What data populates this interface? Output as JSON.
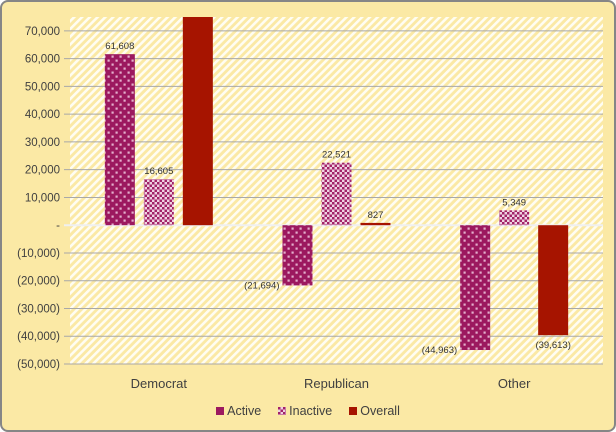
{
  "window": {
    "background": "#FBE9A5",
    "border_color": "#868686"
  },
  "chart_data": {
    "type": "bar",
    "title": "",
    "xlabel": "",
    "ylabel": "",
    "categories": [
      "Democrat",
      "Republican",
      "Other"
    ],
    "series": [
      {
        "name": "Active",
        "fill_style": "dotted",
        "color": "#9C195F",
        "dot_color": "#E3AFCC",
        "values": [
          61608,
          -21694,
          -44963
        ],
        "labels": [
          "61,608",
          "(21,694)",
          "(44,963)"
        ],
        "label_placements": [
          "above",
          "left",
          "left"
        ]
      },
      {
        "name": "Inactive",
        "fill_style": "checker",
        "color": "#A22368",
        "light_color": "#EFD2E2",
        "values": [
          16605,
          22521,
          5349
        ],
        "labels": [
          "16,605",
          "22,521",
          "5,349"
        ],
        "label_placements": [
          "above",
          "above",
          "above"
        ]
      },
      {
        "name": "Overall",
        "fill_style": "solid",
        "color": "#A61400",
        "values": [
          78213,
          827,
          -39613
        ],
        "labels": [
          "",
          "827",
          "(39,613)"
        ],
        "label_placements": [
          "none",
          "above",
          "below"
        ]
      }
    ],
    "y_axis": {
      "min": -50000,
      "max": 75000,
      "tick_step": 10000,
      "ticks": [
        {
          "v": 70000,
          "label": "70,000"
        },
        {
          "v": 60000,
          "label": "60,000"
        },
        {
          "v": 50000,
          "label": "50,000"
        },
        {
          "v": 40000,
          "label": "40,000"
        },
        {
          "v": 30000,
          "label": "30,000"
        },
        {
          "v": 20000,
          "label": "20,000"
        },
        {
          "v": 10000,
          "label": "10,000"
        },
        {
          "v": 0,
          "label": "-"
        },
        {
          "v": -10000,
          "label": "(10,000)"
        },
        {
          "v": -20000,
          "label": "(20,000)"
        },
        {
          "v": -30000,
          "label": "(30,000)"
        },
        {
          "v": -40000,
          "label": "(40,000)"
        },
        {
          "v": -50000,
          "label": "(50,000)"
        }
      ]
    },
    "legend_position": "bottom",
    "grid": true,
    "colors": {
      "plot_bg": "#FBE9A5",
      "plot_hatch_stripe": "#FFFDF2",
      "gridline": "#A8A8A8",
      "zero_line": "#F0F0F0",
      "axis_text": "#404040",
      "data_label_text": "#333333"
    }
  }
}
